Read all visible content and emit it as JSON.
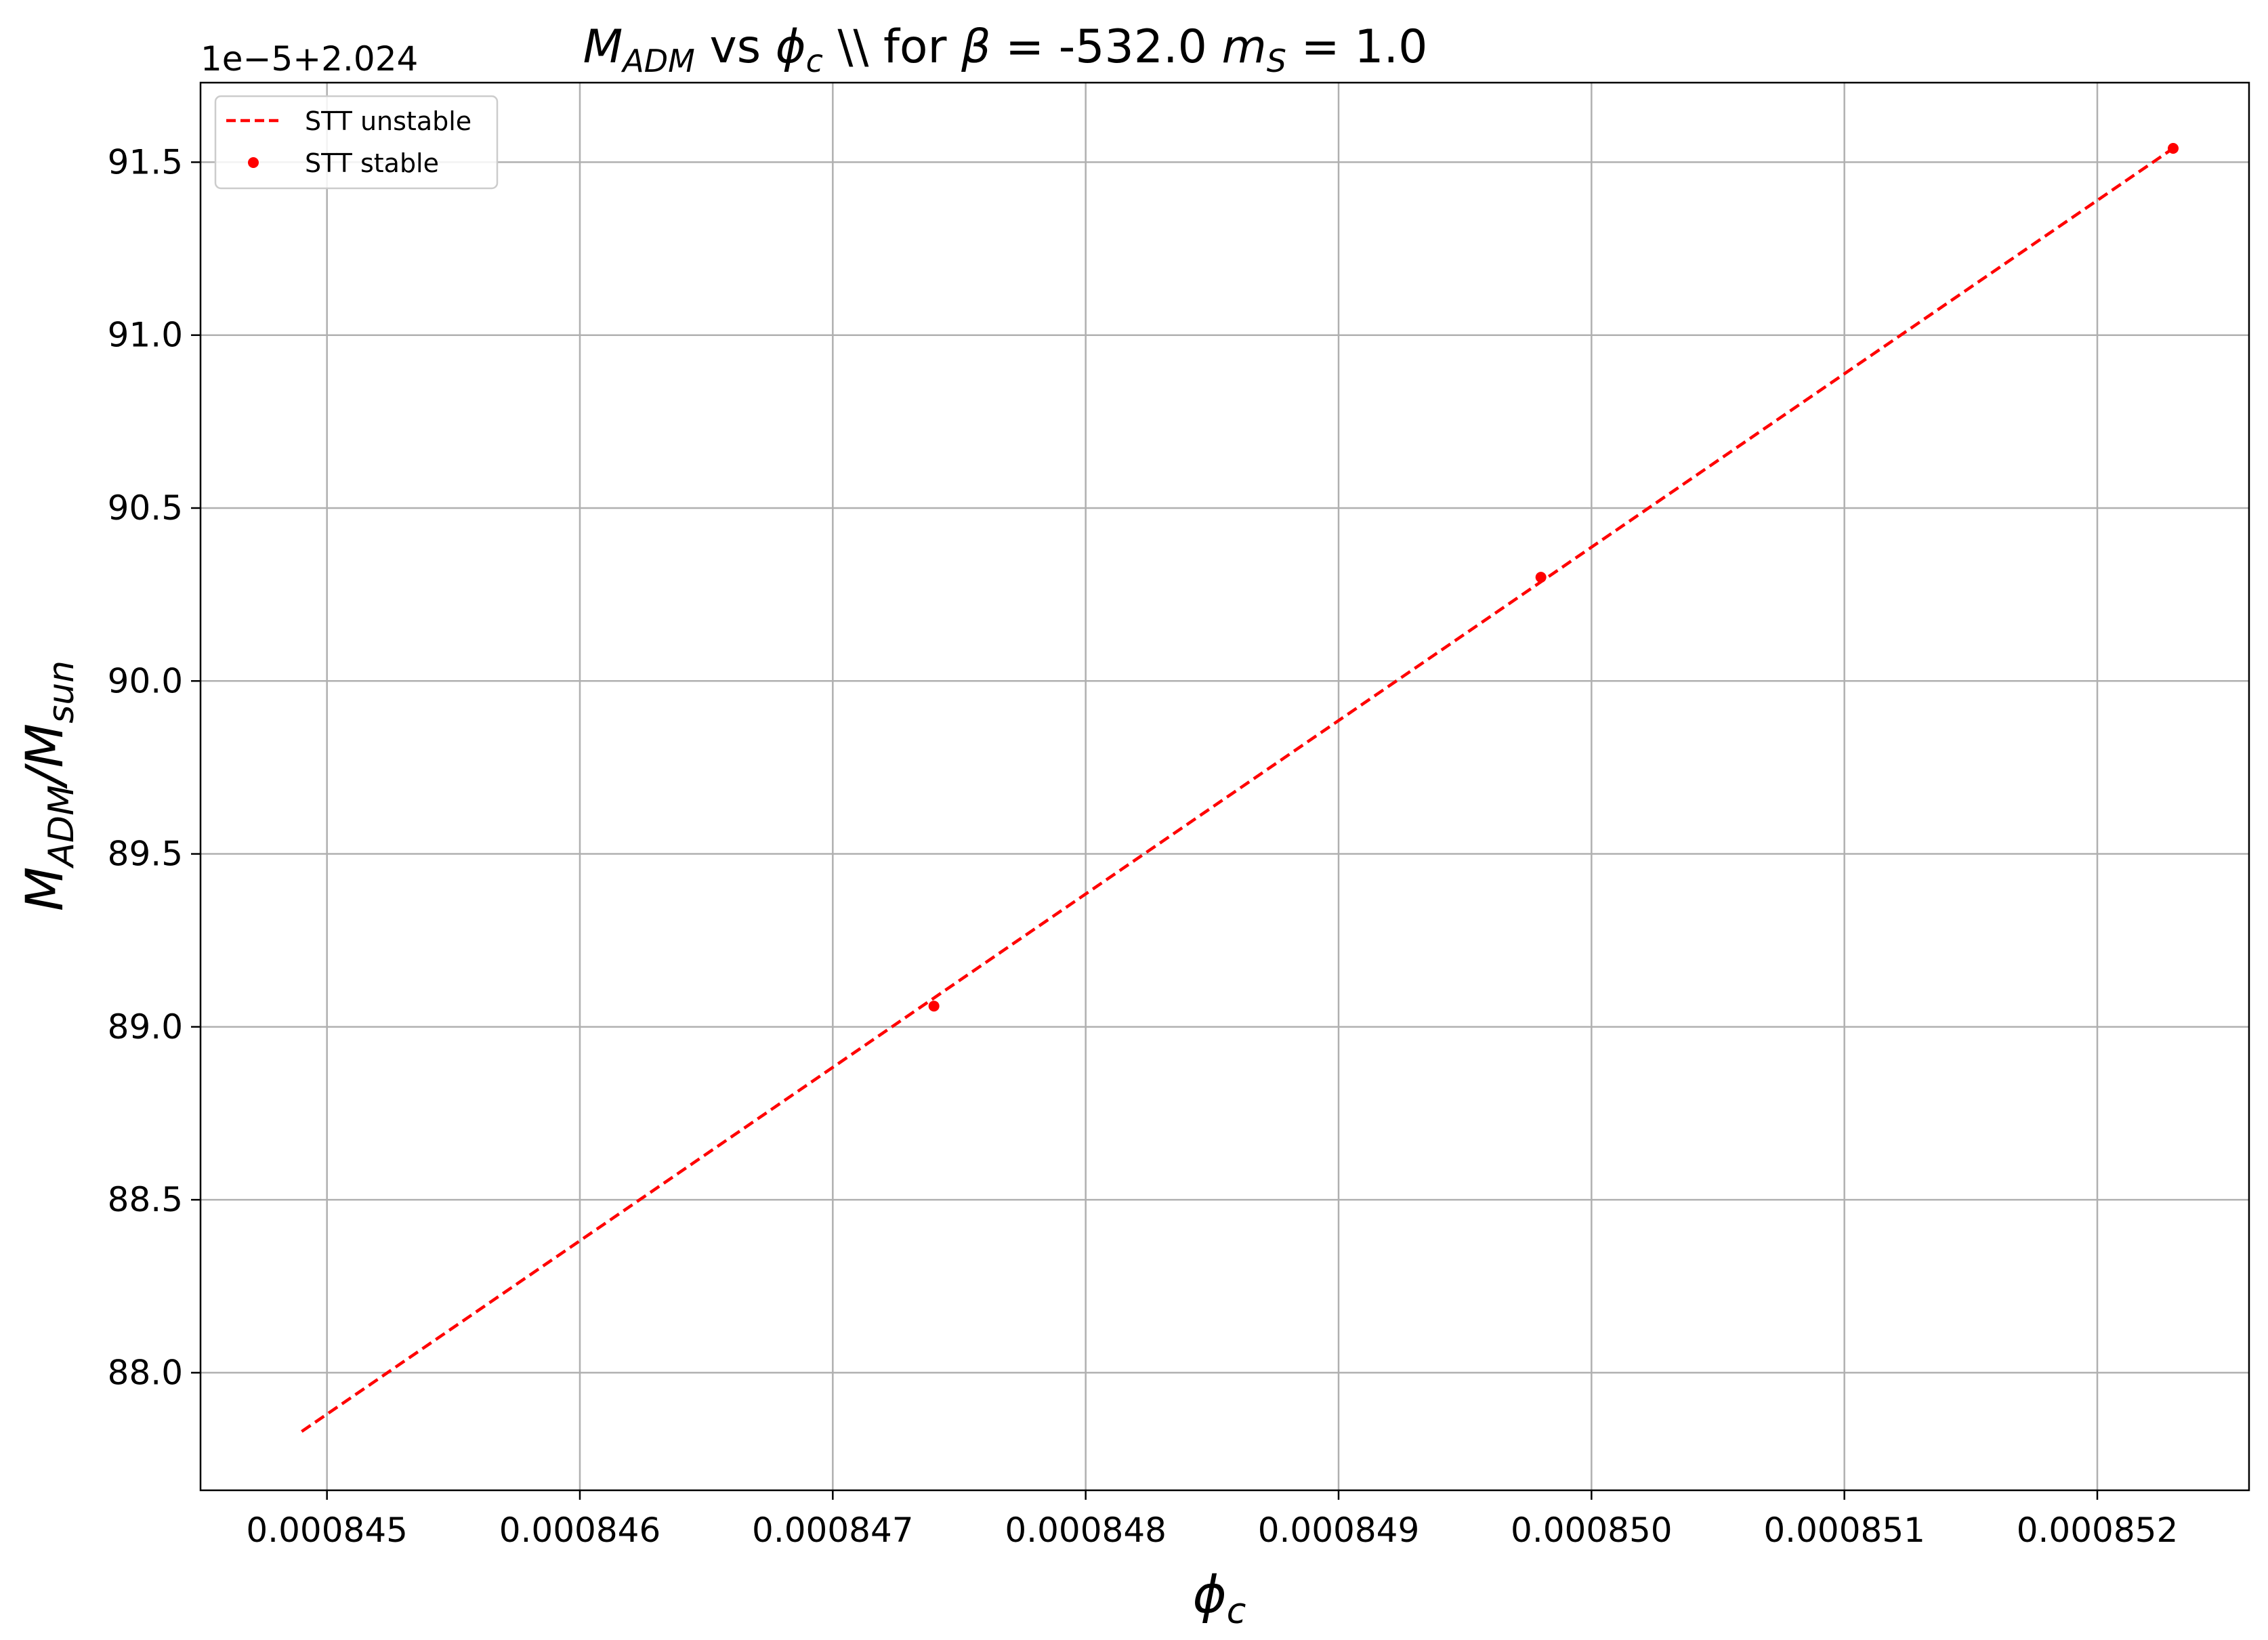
{
  "chart_data": {
    "type": "line",
    "title": "M_ADM vs φ_c \\\\ for β = -532.0 m_S = 1.0",
    "title_parts": {
      "m": "M",
      "m_sub": "ADM",
      "vs": " vs ",
      "phi": "ϕ",
      "phi_sub": "c",
      "for": " \\\\ for ",
      "beta": "β",
      "beta_val": " = -532.0 ",
      "ms": "m",
      "ms_sub": "S",
      "ms_val": " = 1.0"
    },
    "xlabel": "ϕ_c",
    "xlabel_parts": {
      "base": "ϕ",
      "sub": "c"
    },
    "ylabel": "M_ADM/M_sun",
    "ylabel_parts": {
      "m1": "M",
      "sub1": "ADM",
      "slash": "/M",
      "sub2": "sun"
    },
    "y_offset_text": "1e−5+2.024",
    "xlim": [
      0.0008445,
      0.0008526
    ],
    "ylim": [
      87.66,
      91.73
    ],
    "x_ticks": [
      0.000845,
      0.000846,
      0.000847,
      0.000848,
      0.000849,
      0.00085,
      0.000851,
      0.000852
    ],
    "x_tick_labels": [
      "0.000845",
      "0.000846",
      "0.000847",
      "0.000848",
      "0.000849",
      "0.000850",
      "0.000851",
      "0.000852"
    ],
    "y_ticks": [
      88.0,
      88.5,
      89.0,
      89.5,
      90.0,
      90.5,
      91.0,
      91.5
    ],
    "y_tick_labels": [
      "88.0",
      "88.5",
      "89.0",
      "89.5",
      "90.0",
      "90.5",
      "91.0",
      "91.5"
    ],
    "grid": true,
    "legend_position": "top-left",
    "series": [
      {
        "name": "STT unstable",
        "style": "dashed-line",
        "color": "#ff0000",
        "points": [
          [
            0.0008449,
            87.83
          ],
          [
            0.0008523,
            91.54
          ]
        ]
      },
      {
        "name": "STT stable",
        "style": "markers",
        "color": "#ff0000",
        "points": [
          [
            0.0008474,
            89.06
          ],
          [
            0.0008498,
            90.3
          ],
          [
            0.0008523,
            91.54
          ]
        ]
      }
    ]
  }
}
